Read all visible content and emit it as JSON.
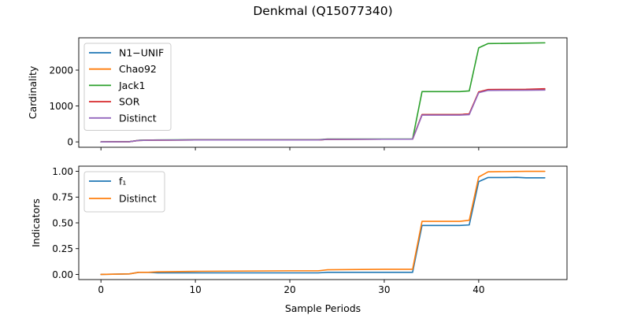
{
  "figure": {
    "title": "Denkmal (Q15077340)"
  },
  "chart_data": [
    {
      "type": "line",
      "ylabel": "Cardinality",
      "xlabel": "",
      "xlim": [
        -2.35,
        49.35
      ],
      "ylim": [
        -150,
        2900
      ],
      "xticks": [
        0,
        10,
        20,
        30,
        40
      ],
      "yticks": [
        0,
        1000,
        2000
      ],
      "ytick_labels": [
        "0",
        "1000",
        "2000"
      ],
      "show_xtick_labels": false,
      "grid": false,
      "legend": "upper-left",
      "series": [
        {
          "name": "N1−UNIF",
          "color": "#1f77b4",
          "x": [
            0,
            3,
            4,
            5,
            6,
            10,
            20,
            23,
            24,
            30,
            33,
            34,
            38,
            39,
            40,
            41,
            45,
            47
          ],
          "y": [
            0,
            5,
            40,
            45,
            50,
            55,
            55,
            55,
            70,
            75,
            75,
            760,
            760,
            780,
            1380,
            1450,
            1450,
            1450
          ]
        },
        {
          "name": "Chao92",
          "color": "#ff7f0e",
          "x": [
            0,
            3,
            4,
            5,
            6,
            10,
            20,
            23,
            24,
            30,
            33,
            34,
            38,
            39,
            40,
            41,
            45,
            47
          ],
          "y": [
            0,
            5,
            40,
            45,
            50,
            55,
            55,
            55,
            70,
            75,
            75,
            760,
            760,
            780,
            1390,
            1455,
            1460,
            1470
          ]
        },
        {
          "name": "Jack1",
          "color": "#2ca02c",
          "x": [
            0,
            3,
            4,
            5,
            6,
            10,
            20,
            23,
            24,
            30,
            33,
            34,
            38,
            39,
            40,
            41,
            43,
            47
          ],
          "y": [
            0,
            5,
            45,
            50,
            55,
            60,
            60,
            60,
            80,
            80,
            80,
            1400,
            1400,
            1420,
            2620,
            2740,
            2745,
            2760
          ]
        },
        {
          "name": "SOR",
          "color": "#d62728",
          "x": [
            0,
            3,
            4,
            5,
            6,
            10,
            20,
            23,
            24,
            30,
            33,
            34,
            38,
            39,
            40,
            41,
            45,
            47
          ],
          "y": [
            0,
            5,
            40,
            45,
            50,
            55,
            55,
            55,
            70,
            75,
            75,
            760,
            760,
            780,
            1390,
            1460,
            1465,
            1480
          ]
        },
        {
          "name": "Distinct",
          "color": "#9467bd",
          "x": [
            0,
            3,
            4,
            5,
            6,
            10,
            20,
            23,
            24,
            30,
            33,
            34,
            38,
            39,
            40,
            41,
            45,
            47
          ],
          "y": [
            0,
            5,
            40,
            45,
            50,
            55,
            55,
            55,
            70,
            75,
            75,
            745,
            745,
            760,
            1370,
            1435,
            1440,
            1445
          ]
        }
      ]
    },
    {
      "type": "line",
      "ylabel": "Indicators",
      "xlabel": "Sample Periods",
      "xlim": [
        -2.35,
        49.35
      ],
      "ylim": [
        -0.05,
        1.05
      ],
      "xticks": [
        0,
        10,
        20,
        30,
        40
      ],
      "xtick_labels": [
        "0",
        "10",
        "20",
        "30",
        "40"
      ],
      "yticks": [
        0,
        0.25,
        0.5,
        0.75,
        1.0
      ],
      "ytick_labels": [
        "0.00",
        "0.25",
        "0.50",
        "0.75",
        "1.00"
      ],
      "grid": false,
      "legend": "upper-left",
      "series": [
        {
          "name": "f₁",
          "color": "#1f77b4",
          "x": [
            0,
            3,
            4,
            5,
            6,
            10,
            20,
            23,
            24,
            30,
            33,
            34,
            38,
            39,
            40,
            41,
            43,
            44,
            45,
            47
          ],
          "y": [
            0,
            0.005,
            0.02,
            0.02,
            0.015,
            0.015,
            0.015,
            0.015,
            0.02,
            0.02,
            0.02,
            0.475,
            0.475,
            0.48,
            0.9,
            0.94,
            0.94,
            0.942,
            0.937,
            0.937
          ]
        },
        {
          "name": "Distinct",
          "color": "#ff7f0e",
          "x": [
            0,
            3,
            4,
            5,
            6,
            10,
            20,
            23,
            24,
            30,
            33,
            34,
            38,
            39,
            40,
            41,
            45,
            47
          ],
          "y": [
            0,
            0.005,
            0.02,
            0.02,
            0.025,
            0.03,
            0.035,
            0.035,
            0.045,
            0.05,
            0.05,
            0.515,
            0.515,
            0.525,
            0.945,
            0.995,
            1.0,
            1.0
          ]
        }
      ]
    }
  ]
}
